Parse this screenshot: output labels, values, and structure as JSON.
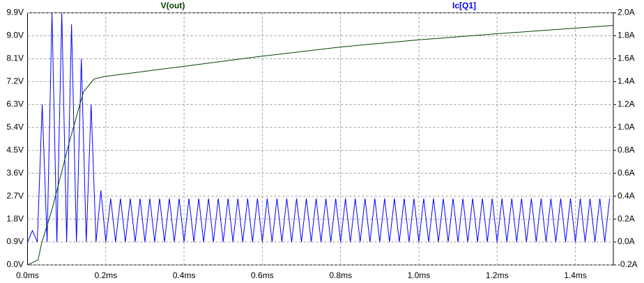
{
  "chart_data": {
    "type": "line",
    "xlim": [
      0,
      1.497
    ],
    "xticks": [
      {
        "value": 0,
        "label": "0.0ms"
      },
      {
        "value": 0.2,
        "label": "0.2ms"
      },
      {
        "value": 0.4,
        "label": "0.4ms"
      },
      {
        "value": 0.6,
        "label": "0.6ms"
      },
      {
        "value": 0.8,
        "label": "0.8ms"
      },
      {
        "value": 1.0,
        "label": "1.0ms"
      },
      {
        "value": 1.2,
        "label": "1.2ms"
      },
      {
        "value": 1.4,
        "label": "1.4ms"
      }
    ],
    "ylim": [
      0,
      9.9
    ],
    "yticks": [
      {
        "value": 0,
        "label": "0.0V"
      },
      {
        "value": 0.9,
        "label": "0.9V"
      },
      {
        "value": 1.8,
        "label": "1.8V"
      },
      {
        "value": 2.7,
        "label": "2.7V"
      },
      {
        "value": 3.6,
        "label": "3.6V"
      },
      {
        "value": 4.5,
        "label": "4.5V"
      },
      {
        "value": 5.4,
        "label": "5.4V"
      },
      {
        "value": 6.3,
        "label": "6.3V"
      },
      {
        "value": 7.2,
        "label": "7.2V"
      },
      {
        "value": 8.1,
        "label": "8.1V"
      },
      {
        "value": 9.0,
        "label": "9.0V"
      },
      {
        "value": 9.9,
        "label": "9.9V"
      }
    ],
    "y2lim": [
      -0.2,
      2.0
    ],
    "y2ticks": [
      {
        "value": -0.2,
        "label": "-0.2A"
      },
      {
        "value": 0.0,
        "label": "0.0A"
      },
      {
        "value": 0.2,
        "label": "0.2A"
      },
      {
        "value": 0.4,
        "label": "0.4A"
      },
      {
        "value": 0.6,
        "label": "0.6A"
      },
      {
        "value": 0.8,
        "label": "0.8A"
      },
      {
        "value": 1.0,
        "label": "1.0A"
      },
      {
        "value": 1.2,
        "label": "1.2A"
      },
      {
        "value": 1.4,
        "label": "1.4A"
      },
      {
        "value": 1.6,
        "label": "1.6A"
      },
      {
        "value": 1.8,
        "label": "1.8A"
      },
      {
        "value": 2.0,
        "label": "2.0A"
      }
    ],
    "grid": true,
    "series": [
      {
        "name": "V(out)",
        "color": "#004400",
        "x": [
          0,
          0.027,
          0.036,
          0.063,
          0.108,
          0.143,
          0.17,
          0.197,
          0.4,
          0.6,
          0.8,
          1.0,
          1.2,
          1.4,
          1.497
        ],
        "values": [
          0,
          0.2,
          0.85,
          2.2,
          4.9,
          6.8,
          7.3,
          7.4,
          7.8,
          8.2,
          8.56,
          8.84,
          9.08,
          9.3,
          9.41
        ]
      },
      {
        "name": "Ic[Q1]",
        "color": "#0000ff",
        "axis": "y2",
        "x": [
          0,
          0.0125,
          0.025,
          0.0375,
          0.05,
          0.0625,
          0.075,
          0.0875,
          0.1,
          0.1125,
          0.125,
          0.1375,
          0.15,
          0.1625,
          0.175,
          0.1875,
          0.2,
          0.2125,
          0.225,
          0.2375,
          0.25,
          0.2625,
          0.275,
          0.2875,
          0.3,
          0.3125,
          0.325,
          0.3375,
          0.35,
          0.3625,
          0.375,
          0.3875,
          0.4,
          0.4125,
          0.425,
          0.4375,
          0.45,
          0.4625,
          0.475,
          0.4875,
          0.5,
          0.5125,
          0.525,
          0.5375,
          0.55,
          0.5625,
          0.575,
          0.5875,
          0.6,
          0.6125,
          0.625,
          0.6375,
          0.65,
          0.6625,
          0.675,
          0.6875,
          0.7,
          0.7125,
          0.725,
          0.7375,
          0.75,
          0.7625,
          0.775,
          0.7875,
          0.8,
          0.8125,
          0.825,
          0.8375,
          0.85,
          0.8625,
          0.875,
          0.8875,
          0.9,
          0.9125,
          0.925,
          0.9375,
          0.95,
          0.9625,
          0.975,
          0.9875,
          1.0,
          1.0125,
          1.025,
          1.0375,
          1.05,
          1.0625,
          1.075,
          1.0875,
          1.1,
          1.1125,
          1.125,
          1.1375,
          1.15,
          1.1625,
          1.175,
          1.1875,
          1.2,
          1.2125,
          1.225,
          1.2375,
          1.25,
          1.2625,
          1.275,
          1.2875,
          1.3,
          1.3125,
          1.325,
          1.3375,
          1.35,
          1.3625,
          1.375,
          1.3875,
          1.4,
          1.4125,
          1.425,
          1.4375,
          1.45,
          1.4625,
          1.475,
          1.4875
        ],
        "values": [
          0,
          0.1,
          0,
          1.2,
          0,
          2.0,
          0,
          2.0,
          0,
          1.9,
          0,
          1.6,
          0,
          1.2,
          0,
          0.45,
          0,
          0.38,
          0,
          0.38,
          0,
          0.38,
          0,
          0.38,
          0,
          0.38,
          0,
          0.38,
          0,
          0.38,
          0,
          0.38,
          0,
          0.38,
          0,
          0.38,
          0,
          0.38,
          0,
          0.38,
          0,
          0.38,
          0,
          0.38,
          0,
          0.38,
          0,
          0.38,
          0,
          0.38,
          0,
          0.38,
          0,
          0.38,
          0,
          0.38,
          0,
          0.38,
          0,
          0.38,
          0,
          0.38,
          0,
          0.38,
          0,
          0.38,
          0,
          0.38,
          0,
          0.38,
          0,
          0.38,
          0,
          0.38,
          0,
          0.38,
          0,
          0.38,
          0,
          0.38,
          0,
          0.38,
          0,
          0.38,
          0,
          0.38,
          0,
          0.38,
          0,
          0.38,
          0,
          0.38,
          0,
          0.38,
          0,
          0.38,
          0,
          0.38,
          0,
          0.38,
          0,
          0.38,
          0,
          0.38,
          0,
          0.38,
          0,
          0.38,
          0,
          0.38,
          0,
          0.38,
          0,
          0.38,
          0,
          0.38,
          0,
          0.38,
          0,
          0.38
        ]
      }
    ]
  }
}
